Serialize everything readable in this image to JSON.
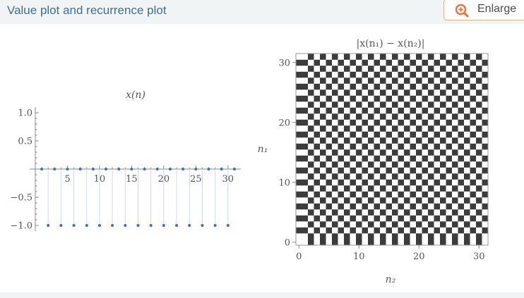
{
  "header": {
    "title": "Value plot and recurrence plot",
    "enlarge_label": "Enlarge",
    "enlarge_icon": "zoom-in-icon",
    "accent": "#e8733a",
    "title_color": "#3d6f93"
  },
  "chart_data": [
    {
      "type": "scatter",
      "title": "x(n)",
      "xlabel": "",
      "ylabel": "",
      "xlim": [
        0,
        32
      ],
      "ylim": [
        -1.1,
        1.1
      ],
      "xticks": [
        5,
        10,
        15,
        20,
        25,
        30
      ],
      "yticks": [
        -1.0,
        -0.5,
        0.5,
        1.0
      ],
      "ytick_labels": [
        "−1.0",
        "−0.5",
        "0.5",
        "1.0"
      ],
      "filling": "stems to axis",
      "color": "#3f6fb5",
      "x": [
        1,
        2,
        3,
        4,
        5,
        6,
        7,
        8,
        9,
        10,
        11,
        12,
        13,
        14,
        15,
        16,
        17,
        18,
        19,
        20,
        21,
        22,
        23,
        24,
        25,
        26,
        27,
        28,
        29,
        30,
        31
      ],
      "y": [
        0,
        -1,
        0,
        -1,
        0,
        -1,
        0,
        -1,
        0,
        -1,
        0,
        -1,
        0,
        -1,
        0,
        -1,
        0,
        -1,
        0,
        -1,
        0,
        -1,
        0,
        -1,
        0,
        -1,
        0,
        -1,
        0,
        -1,
        0
      ]
    },
    {
      "type": "heatmap",
      "title": "|x(n₁) − x(n₂)|",
      "xlabel": "n₂",
      "ylabel": "n₁",
      "xlim": [
        0,
        31
      ],
      "ylim": [
        0,
        31
      ],
      "xticks": [
        0,
        10,
        20,
        30
      ],
      "yticks": [
        0,
        10,
        20,
        30
      ],
      "rule": "cell (n1, n2) value = |x(n1) - x(n2)|",
      "colors": {
        "zero": "#ffffff",
        "half": "#b4b4b4",
        "one": "#3c3c3c"
      }
    }
  ]
}
